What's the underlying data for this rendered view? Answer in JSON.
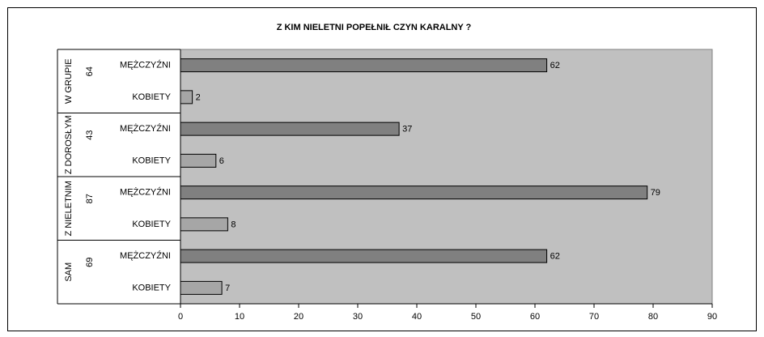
{
  "chart_data": {
    "type": "bar",
    "orientation": "horizontal",
    "title": "Z KIM NIELETNI POPEŁNIŁ CZYN KARALNY ?",
    "groups": [
      {
        "label": "W GRUPIE",
        "total": "64",
        "rows": [
          {
            "label": "MĘŻCZYŹNI",
            "value": 62,
            "color": "#808080"
          },
          {
            "label": "KOBIETY",
            "value": 2,
            "color": "#a6a6a6"
          }
        ]
      },
      {
        "label": "Z DOROSŁYM",
        "total": "43",
        "rows": [
          {
            "label": "MĘŻCZYŹNI",
            "value": 37,
            "color": "#808080"
          },
          {
            "label": "KOBIETY",
            "value": 6,
            "color": "#a6a6a6"
          }
        ]
      },
      {
        "label": "Z NIELETNIM",
        "total": "87",
        "rows": [
          {
            "label": "MĘŻCZYŹNI",
            "value": 79,
            "color": "#808080"
          },
          {
            "label": "KOBIETY",
            "value": 8,
            "color": "#a6a6a6"
          }
        ]
      },
      {
        "label": "SAM",
        "total": "69",
        "rows": [
          {
            "label": "MĘŻCZYŹNI",
            "value": 62,
            "color": "#808080"
          },
          {
            "label": "KOBIETY",
            "value": 7,
            "color": "#a6a6a6"
          }
        ]
      }
    ],
    "xlim": [
      0,
      90
    ],
    "xticks": [
      0,
      10,
      20,
      30,
      40,
      50,
      60,
      70,
      80,
      90
    ],
    "plot_background": "#c0c0c0",
    "grid": false,
    "legend": "none"
  }
}
